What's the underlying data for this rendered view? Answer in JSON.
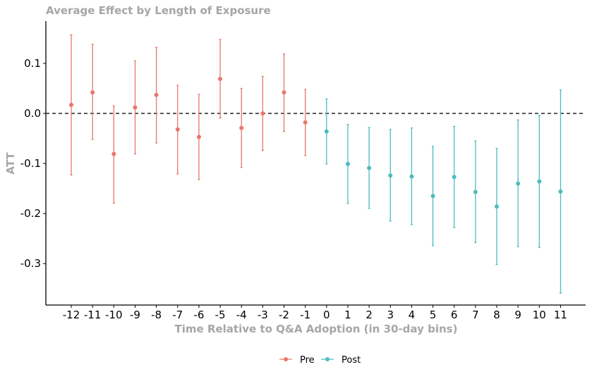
{
  "chart_data": {
    "type": "scatter",
    "title": "Average Effect by Length of Exposure",
    "xlabel": "Time Relative to Q&A Adoption (in 30-day bins)",
    "ylabel": "ATT",
    "xlim": [
      -13,
      12
    ],
    "ylim": [
      -0.385,
      0.18
    ],
    "x_ticks": [
      -12,
      -11,
      -10,
      -9,
      -8,
      -7,
      -6,
      -5,
      -4,
      -3,
      -2,
      -1,
      0,
      1,
      2,
      3,
      4,
      5,
      6,
      7,
      8,
      9,
      10,
      11
    ],
    "y_ticks": [
      0.1,
      0.0,
      -0.1,
      -0.2,
      -0.3
    ],
    "y_tick_labels": [
      "0.1",
      "0.0",
      "-0.1",
      "-0.2",
      "-0.3"
    ],
    "reference_line": {
      "y": 0,
      "style": "dashed",
      "color": "#222222"
    },
    "legend_position": "bottom",
    "grid": false,
    "series": [
      {
        "name": "Pre",
        "color": "#e8776b",
        "points": [
          {
            "x": -12,
            "y": 0.017,
            "lo": -0.123,
            "hi": 0.157
          },
          {
            "x": -11,
            "y": 0.042,
            "lo": -0.052,
            "hi": 0.138
          },
          {
            "x": -10,
            "y": -0.081,
            "lo": -0.179,
            "hi": 0.015
          },
          {
            "x": -9,
            "y": 0.012,
            "lo": -0.081,
            "hi": 0.105
          },
          {
            "x": -8,
            "y": 0.037,
            "lo": -0.059,
            "hi": 0.132
          },
          {
            "x": -7,
            "y": -0.032,
            "lo": -0.121,
            "hi": 0.056
          },
          {
            "x": -6,
            "y": -0.047,
            "lo": -0.132,
            "hi": 0.038
          },
          {
            "x": -5,
            "y": 0.069,
            "lo": -0.009,
            "hi": 0.148
          },
          {
            "x": -4,
            "y": -0.029,
            "lo": -0.108,
            "hi": 0.05
          },
          {
            "x": -3,
            "y": 0.0,
            "lo": -0.074,
            "hi": 0.074
          },
          {
            "x": -2,
            "y": 0.042,
            "lo": -0.036,
            "hi": 0.119
          },
          {
            "x": -1,
            "y": -0.018,
            "lo": -0.084,
            "hi": 0.048
          }
        ]
      },
      {
        "name": "Post",
        "color": "#4cbcbf",
        "points": [
          {
            "x": 0,
            "y": -0.036,
            "lo": -0.101,
            "hi": 0.029
          },
          {
            "x": 1,
            "y": -0.101,
            "lo": -0.18,
            "hi": -0.022
          },
          {
            "x": 2,
            "y": -0.109,
            "lo": -0.19,
            "hi": -0.028
          },
          {
            "x": 3,
            "y": -0.124,
            "lo": -0.215,
            "hi": -0.032
          },
          {
            "x": 4,
            "y": -0.126,
            "lo": -0.222,
            "hi": -0.029
          },
          {
            "x": 5,
            "y": -0.165,
            "lo": -0.264,
            "hi": -0.066
          },
          {
            "x": 6,
            "y": -0.127,
            "lo": -0.228,
            "hi": -0.026
          },
          {
            "x": 7,
            "y": -0.157,
            "lo": -0.258,
            "hi": -0.055
          },
          {
            "x": 8,
            "y": -0.186,
            "lo": -0.302,
            "hi": -0.07
          },
          {
            "x": 9,
            "y": -0.14,
            "lo": -0.266,
            "hi": -0.013
          },
          {
            "x": 10,
            "y": -0.136,
            "lo": -0.268,
            "hi": -0.004
          },
          {
            "x": 11,
            "y": -0.156,
            "lo": -0.359,
            "hi": 0.047
          }
        ]
      }
    ]
  }
}
